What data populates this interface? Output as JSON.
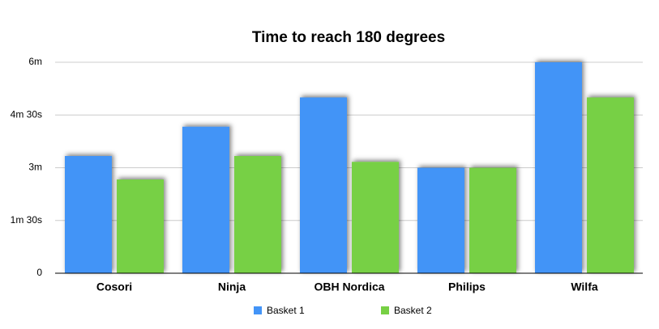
{
  "chart_data": {
    "type": "bar",
    "title": "Time to reach 180 degrees",
    "categories": [
      "Cosori",
      "Ninja",
      "OBH Nordica",
      "Philips",
      "Wilfa"
    ],
    "series": [
      {
        "name": "Basket 1",
        "color": "#4394f7",
        "values": [
          200,
          250,
          300,
          180,
          360
        ]
      },
      {
        "name": "Basket 2",
        "color": "#77d044",
        "values": [
          160,
          200,
          190,
          180,
          300
        ]
      }
    ],
    "ylim": [
      0,
      360
    ],
    "yticks": [
      0,
      {
        "value": 90,
        "label": "1m 30s"
      },
      {
        "value": 180,
        "label": "3m"
      },
      {
        "value": 270,
        "label": "4m 30s"
      },
      {
        "value": 360,
        "label": "6m"
      }
    ],
    "grid": true
  }
}
